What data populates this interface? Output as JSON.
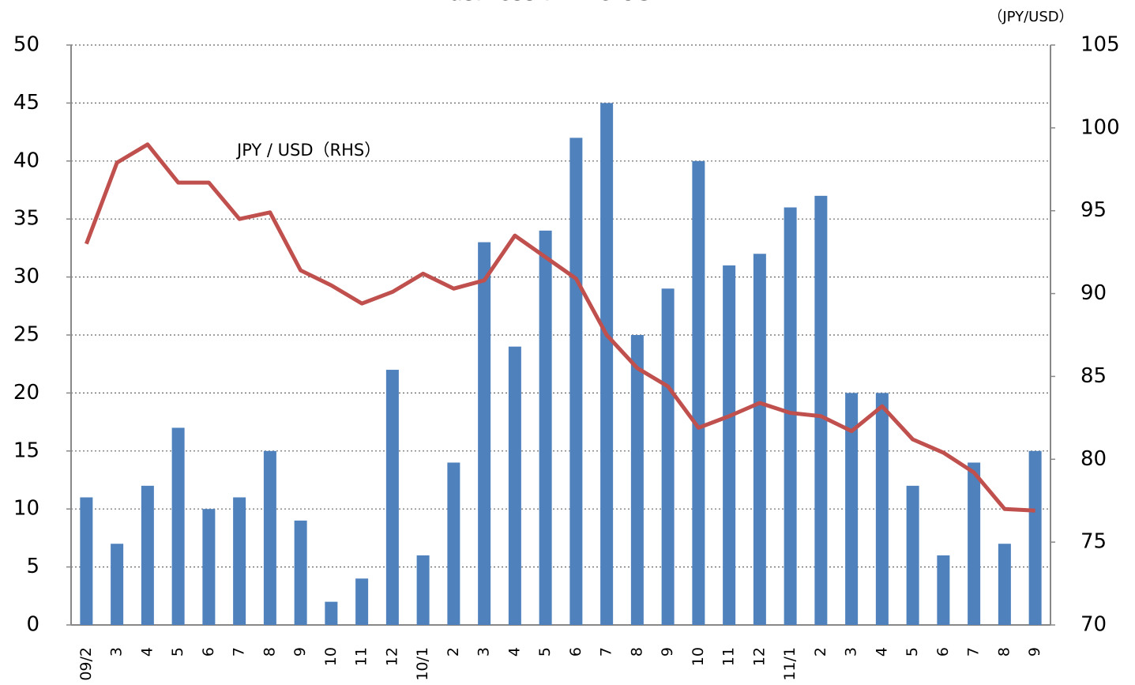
{
  "chart_data": {
    "type": "bar_line",
    "title": "Business in the US",
    "y2_label": "（JPY/USD）",
    "annotation": "JPY / USD（RHS）",
    "categories": [
      "09/2",
      "3",
      "4",
      "5",
      "6",
      "7",
      "8",
      "9",
      "10",
      "11",
      "12",
      "10/1",
      "2",
      "3",
      "4",
      "5",
      "6",
      "7",
      "8",
      "9",
      "10",
      "11",
      "12",
      "11/1",
      "2",
      "3",
      "4",
      "5",
      "6",
      "7",
      "8",
      "9"
    ],
    "series": [
      {
        "name": "Business",
        "type": "bar",
        "color": "#4f81bd",
        "values": [
          11,
          7,
          12,
          17,
          10,
          11,
          15,
          9,
          2,
          4,
          22,
          6,
          14,
          33,
          24,
          34,
          42,
          45,
          25,
          29,
          40,
          31,
          32,
          36,
          37,
          20,
          20,
          12,
          6,
          14,
          7,
          15
        ]
      },
      {
        "name": "JPY / USD",
        "type": "line",
        "axis": "y2",
        "color": "#c0504d",
        "values": [
          93.0,
          97.9,
          99.0,
          96.7,
          96.7,
          94.5,
          94.9,
          91.4,
          90.5,
          89.4,
          90.1,
          91.2,
          90.3,
          90.8,
          93.5,
          92.2,
          90.9,
          87.5,
          85.5,
          84.4,
          81.9,
          82.6,
          83.4,
          82.8,
          82.6,
          81.7,
          83.2,
          81.2,
          80.4,
          79.2,
          77.0,
          76.9
        ]
      }
    ],
    "ylim": [
      0,
      50
    ],
    "yticks": [
      0,
      5,
      10,
      15,
      20,
      25,
      30,
      35,
      40,
      45,
      50
    ],
    "y2lim": [
      70,
      105
    ],
    "y2ticks": [
      70,
      75,
      80,
      85,
      90,
      95,
      100,
      105
    ],
    "grid": true
  }
}
